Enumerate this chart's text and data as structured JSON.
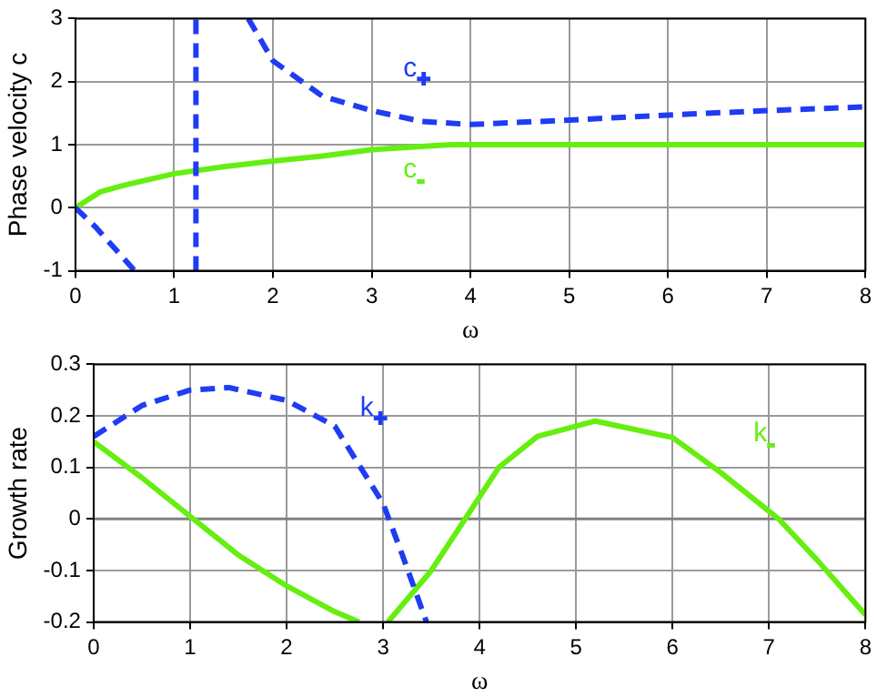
{
  "chart_data": [
    {
      "type": "line",
      "xlabel": "ω",
      "ylabel": "Phase velocity c",
      "xlim": [
        0,
        8
      ],
      "ylim": [
        -1,
        3
      ],
      "xticks": [
        0,
        1,
        2,
        3,
        4,
        5,
        6,
        7,
        8
      ],
      "yticks": [
        -1,
        0,
        1,
        2,
        3
      ],
      "grid": true,
      "legend": false,
      "marker": "none",
      "series": [
        {
          "name": "c$_{+}$",
          "color": "#1f3cf5",
          "line_style": "dashed",
          "x": [
            0,
            0.2,
            0.4,
            0.6,
            0.9,
            1.22,
            1.22,
            1.5,
            1.75,
            2,
            2.5,
            3,
            3.5,
            4,
            5,
            6,
            7,
            8
          ],
          "values": [
            0,
            -0.3,
            -0.65,
            -1,
            null,
            -1,
            3,
            null,
            3,
            2.33,
            1.77,
            1.54,
            1.37,
            1.32,
            1.39,
            1.47,
            1.54,
            1.6
          ]
        },
        {
          "name": "c$_{-}$",
          "color": "#66ee11",
          "line_style": "solid",
          "x": [
            0,
            0.25,
            0.5,
            1,
            1.5,
            2,
            2.5,
            3,
            3.5,
            3.8,
            8
          ],
          "values": [
            0,
            0.25,
            0.36,
            0.54,
            0.65,
            0.74,
            0.82,
            0.92,
            0.97,
            1,
            1
          ]
        }
      ]
    },
    {
      "type": "line",
      "xlabel": "ω",
      "ylabel": "Growth rate",
      "xlim": [
        0,
        8
      ],
      "ylim": [
        -0.2,
        0.3
      ],
      "xticks": [
        0,
        1,
        2,
        3,
        4,
        5,
        6,
        7,
        8
      ],
      "yticks": [
        -0.2,
        -0.1,
        0,
        0.1,
        0.2,
        0.3
      ],
      "grid": true,
      "legend": false,
      "marker": "none",
      "ref_lines": [
        {
          "axis": "y",
          "value": 0,
          "color": "#808080"
        }
      ],
      "series": [
        {
          "name": "k$_{+}$",
          "color": "#1f3cf5",
          "line_style": "dashed",
          "x": [
            0,
            0.5,
            1,
            1.4,
            2,
            2.5,
            3,
            3.2,
            3.45
          ],
          "values": [
            0.16,
            0.22,
            0.25,
            0.255,
            0.23,
            0.18,
            0.03,
            -0.07,
            -0.2
          ]
        },
        {
          "name": "k$_{-}$",
          "color": "#66ee11",
          "line_style": "solid",
          "x": [
            0,
            0.5,
            1,
            1.5,
            2,
            2.5,
            2.75,
            2.9,
            3.05,
            3.5,
            3.85,
            4.2,
            4.6,
            5.2,
            6,
            6.5,
            7.1,
            7.5,
            8
          ],
          "values": [
            0.15,
            0.08,
            0.005,
            -0.07,
            -0.13,
            -0.18,
            -0.2,
            null,
            -0.2,
            -0.1,
            0,
            0.1,
            0.16,
            0.19,
            0.158,
            0.09,
            0,
            -0.08,
            -0.186
          ]
        }
      ]
    }
  ]
}
